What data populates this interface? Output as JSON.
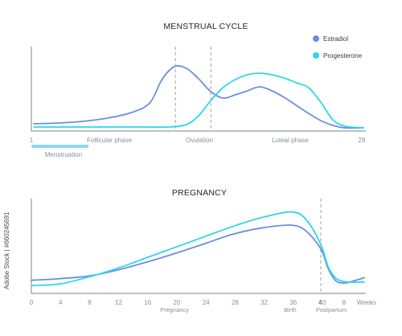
{
  "colors": {
    "estradiol": "#6b8ee3",
    "progesterone": "#2fd6ea",
    "axis": "#7d828c",
    "dashed": "#9da1a8",
    "menstruation_bar": "#8fd8f4"
  },
  "side_text": "Adobe Stock | #660245691",
  "chart_data": [
    {
      "type": "line",
      "title": "MENSTRUAL CYCLE",
      "x_tick_labels": [
        "1",
        "28"
      ],
      "phase_labels": [
        "Follicular phase",
        "Ovulation",
        "Luteal phase"
      ],
      "band_label": "Menstruation",
      "legend": [
        {
          "name": "Estradiol",
          "color": "#6b8ee3"
        },
        {
          "name": "Progesterone",
          "color": "#2fd6ea"
        }
      ],
      "legend_position": "top-right",
      "xlim": [
        1,
        28
      ],
      "ylim": [
        0,
        100
      ],
      "menstruation_days": [
        1,
        5.5
      ],
      "dashed_lines_x": [
        12.6,
        15.5
      ],
      "series": [
        {
          "name": "Estradiol",
          "x": [
            1,
            3,
            5,
            7,
            9,
            10.5,
            11.5,
            12.5,
            13.5,
            14.5,
            15.5,
            16.5,
            17.5,
            18.5,
            19.5,
            20.5,
            21.5,
            22.5,
            23.5,
            24.5,
            25.5,
            26.5,
            28
          ],
          "y": [
            7,
            8,
            10,
            14,
            21,
            33,
            62,
            78,
            76,
            63,
            47,
            39,
            43,
            48,
            53,
            48,
            40,
            30,
            20,
            11,
            5,
            2,
            2
          ]
        },
        {
          "name": "Progesterone",
          "x": [
            1,
            4,
            7,
            10,
            12,
            13.5,
            14.5,
            15.5,
            16.5,
            17.5,
            18.5,
            19.5,
            20.5,
            21.5,
            22.5,
            23.5,
            24.5,
            25.5,
            26.5,
            28
          ],
          "y": [
            3,
            3,
            3,
            3,
            3,
            6,
            17,
            36,
            52,
            62,
            68,
            70,
            68,
            64,
            58,
            52,
            34,
            12,
            4,
            2
          ]
        }
      ]
    },
    {
      "type": "line",
      "title": "PREGNANCY",
      "x_tick_labels": [
        "0",
        "4",
        "8",
        "12",
        "16",
        "20",
        "24",
        "28",
        "32",
        "36",
        "40",
        "4",
        "8",
        "Weeks"
      ],
      "x_sub_labels": [
        "Pregnancy",
        "Birth",
        "Postpartum"
      ],
      "xlim": [
        0,
        46
      ],
      "ylim": [
        0,
        100
      ],
      "dashed_line_x": 40,
      "series": [
        {
          "name": "Estradiol",
          "x": [
            0,
            4,
            8,
            12,
            16,
            20,
            24,
            28,
            32,
            36,
            38,
            40,
            41,
            42,
            43,
            44,
            46
          ],
          "y": [
            14,
            16,
            19,
            26,
            35,
            45,
            56,
            67,
            74,
            77,
            70,
            50,
            28,
            14,
            11,
            12,
            17
          ]
        },
        {
          "name": "Progesterone",
          "x": [
            0,
            4,
            8,
            12,
            16,
            20,
            24,
            28,
            32,
            36,
            38,
            40,
            41,
            42,
            43,
            44,
            46
          ],
          "y": [
            8,
            10,
            18,
            28,
            40,
            52,
            64,
            76,
            86,
            92,
            83,
            55,
            30,
            17,
            13,
            12,
            12
          ]
        }
      ]
    }
  ]
}
